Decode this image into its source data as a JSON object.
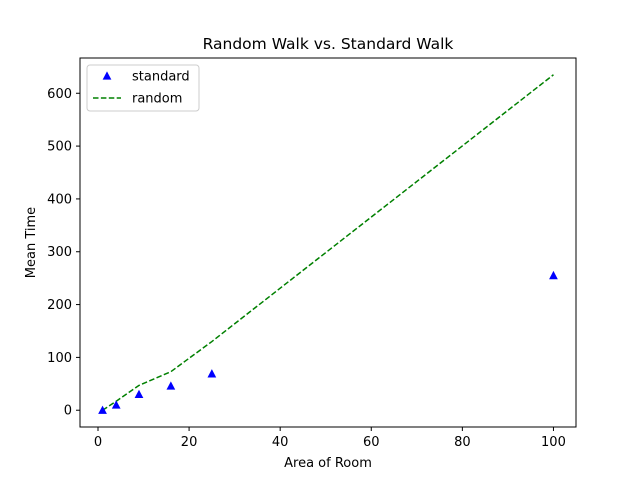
{
  "chart_data": {
    "type": "scatter",
    "title": "Random Walk vs. Standard Walk",
    "xlabel": "Area of Room",
    "ylabel": "Mean Time",
    "xlim": [
      -3.95,
      104.95
    ],
    "ylim": [
      -31.75,
      666.75
    ],
    "xticks": [
      0,
      20,
      40,
      60,
      80,
      100
    ],
    "yticks": [
      0,
      100,
      200,
      300,
      400,
      500,
      600
    ],
    "grid": false,
    "legend": "top-left",
    "series": [
      {
        "name": "standard",
        "style": "markers",
        "marker": "triangle-up",
        "color": "#0000ff",
        "x": [
          1,
          4,
          9,
          16,
          25,
          100
        ],
        "y": [
          0,
          10,
          30,
          46,
          69,
          255
        ]
      },
      {
        "name": "random",
        "style": "dashed-line",
        "color": "#008000",
        "x": [
          1,
          4,
          9,
          16,
          25,
          100
        ],
        "y": [
          0,
          17,
          47,
          73,
          130,
          635
        ]
      }
    ]
  }
}
